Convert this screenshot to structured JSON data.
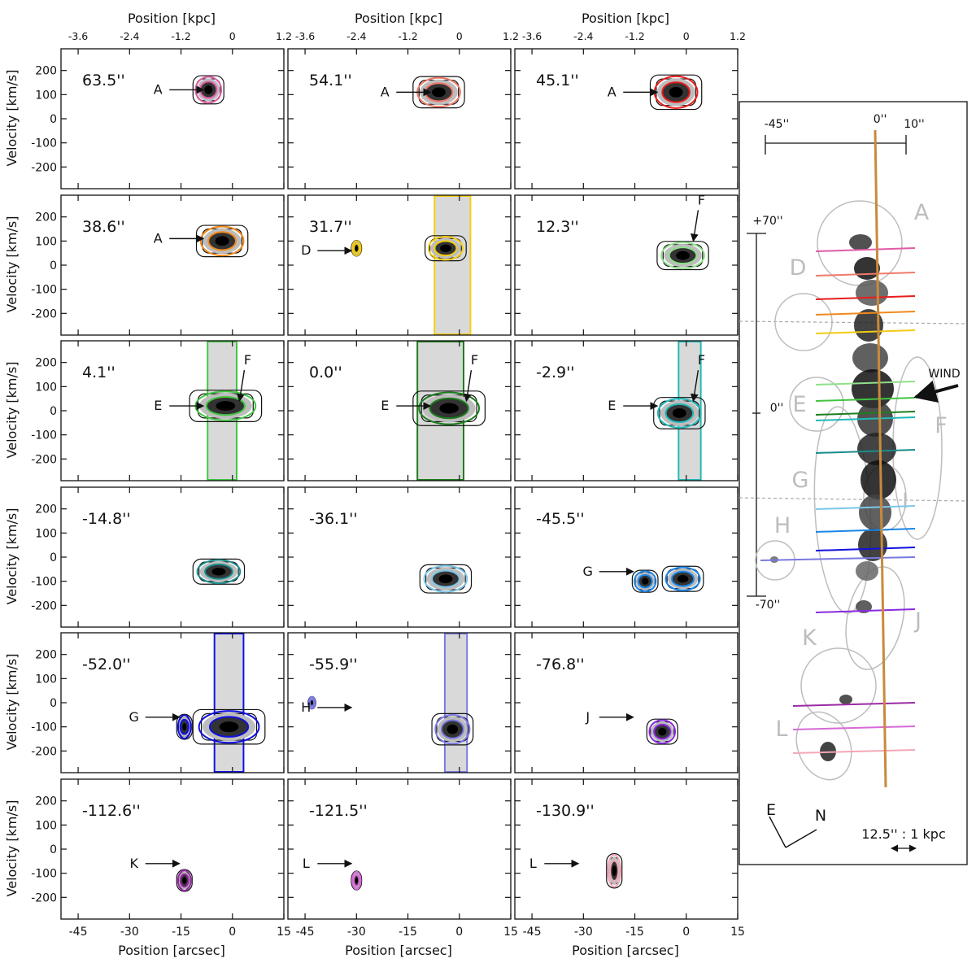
{
  "chart_data": {
    "type": "contour",
    "top_axis_label": "Position [kpc]",
    "bottom_axis_label": "Position [arcsec]",
    "y_axis_label": "Velocity [km/s]",
    "x_range_arcsec": [
      -50,
      15
    ],
    "y_range_kms": [
      -290,
      290
    ],
    "x_ticks_arcsec": [
      "-45",
      "-30",
      "-15",
      "0",
      "15"
    ],
    "x_ticks_kpc": [
      "-3.6",
      "-2.4",
      "-1.2",
      "0",
      "1.2"
    ],
    "y_ticks": [
      "200",
      "100",
      "0",
      "-100",
      "-200"
    ],
    "panels": [
      {
        "offset": "63.5''",
        "color": "#e05aa6",
        "labels": [
          {
            "text": "A",
            "arrow_to": [
              -7,
              120
            ]
          }
        ]
      },
      {
        "offset": "54.1''",
        "color": "#f07a6a",
        "labels": [
          {
            "text": "A",
            "arrow_to": [
              -7,
              110
            ]
          }
        ]
      },
      {
        "offset": "45.1''",
        "color": "#e81c1c",
        "labels": [
          {
            "text": "A",
            "arrow_to": [
              -7,
              110
            ]
          }
        ]
      },
      {
        "offset": "38.6''",
        "color": "#f08a1c",
        "labels": [
          {
            "text": "A",
            "arrow_to": [
              -7,
              110
            ]
          }
        ]
      },
      {
        "offset": "31.7''",
        "color": "#f2cc12",
        "labels": [
          {
            "text": "D",
            "arrow_to": [
              -30,
              60
            ]
          }
        ]
      },
      {
        "offset": "12.3''",
        "color": "#8ee08a",
        "labels": [
          {
            "text": "F",
            "arrow_to": [
              3,
              100
            ]
          }
        ]
      },
      {
        "offset": "4.1''",
        "color": "#42c442",
        "labels": [
          {
            "text": "E",
            "arrow_to": [
              -7,
              20
            ]
          },
          {
            "text": "F",
            "arrow_to": [
              3,
              40
            ]
          }
        ]
      },
      {
        "offset": "0.0''",
        "color": "#1e7d1e",
        "labels": [
          {
            "text": "E",
            "arrow_to": [
              -7,
              20
            ]
          },
          {
            "text": "F",
            "arrow_to": [
              3,
              40
            ]
          }
        ]
      },
      {
        "offset": "-2.9''",
        "color": "#22b8b8",
        "labels": [
          {
            "text": "E",
            "arrow_to": [
              -7,
              20
            ]
          },
          {
            "text": "F",
            "arrow_to": [
              3,
              40
            ]
          }
        ]
      },
      {
        "offset": "-14.8''",
        "color": "#1a8c8c",
        "labels": []
      },
      {
        "offset": "-36.1''",
        "color": "#7cc6e8",
        "labels": []
      },
      {
        "offset": "-45.5''",
        "color": "#1a86e8",
        "labels": [
          {
            "text": "G",
            "arrow_to": [
              -14,
              -60
            ]
          }
        ]
      },
      {
        "offset": "-52.0''",
        "color": "#1010e0",
        "labels": [
          {
            "text": "G",
            "arrow_to": [
              -14,
              -60
            ]
          }
        ]
      },
      {
        "offset": "-55.9''",
        "color": "#7878e0",
        "labels": [
          {
            "text": "H",
            "arrow_to": [
              -30,
              -20
            ]
          }
        ]
      },
      {
        "offset": "-76.8''",
        "color": "#8a2ae0",
        "labels": [
          {
            "text": "J",
            "arrow_to": [
              -14,
              -60
            ]
          }
        ]
      },
      {
        "offset": "-112.6''",
        "color": "#9a2aa6",
        "labels": [
          {
            "text": "K",
            "arrow_to": [
              -14,
              -60
            ]
          }
        ]
      },
      {
        "offset": "-121.5''",
        "color": "#d66ad6",
        "labels": [
          {
            "text": "L",
            "arrow_to": [
              -30,
              -60
            ]
          }
        ]
      },
      {
        "offset": "-130.9''",
        "color": "#f4a6b6",
        "labels": [
          {
            "text": "L",
            "arrow_to": [
              -30,
              -60
            ]
          }
        ]
      }
    ],
    "map_panel": {
      "scale_bar_labels": [
        "-45''",
        "0''",
        "10''"
      ],
      "vertical_labels": [
        "+70''",
        "0''",
        "-70''"
      ],
      "regions": [
        "A",
        "D",
        "E",
        "F",
        "G",
        "H",
        "I",
        "J",
        "K",
        "L"
      ],
      "wind_label": "WIND",
      "compass": [
        "E",
        "N"
      ],
      "scale_text": "12.5'' : 1 kpc"
    }
  }
}
